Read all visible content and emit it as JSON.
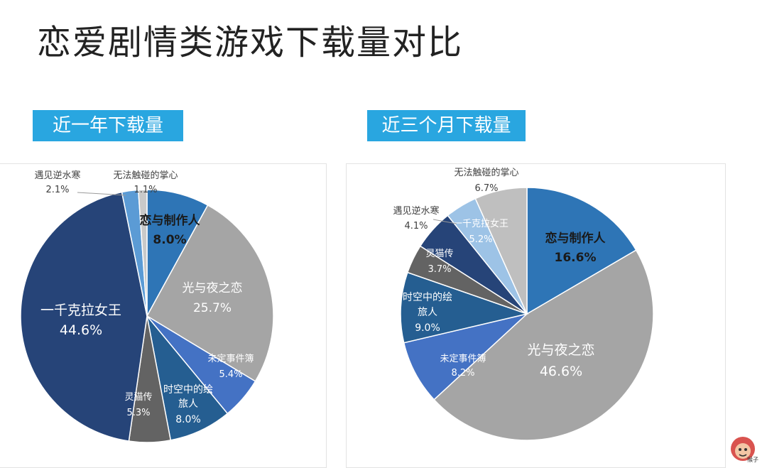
{
  "page": {
    "title": "恋爱剧情类游戏下载量对比",
    "watermark_text": "猴子"
  },
  "chart_data": [
    {
      "type": "pie",
      "title": "近一年下载量",
      "slices": [
        {
          "label": "恋与制作人",
          "value": 8.0,
          "pct": "8.0%",
          "color": "#2e75b6",
          "text_color": "#1a1a1a",
          "bold": true
        },
        {
          "label": "光与夜之恋",
          "value": 25.7,
          "pct": "25.7%",
          "color": "#a5a5a5",
          "text_color": "#ffffff"
        },
        {
          "label": "未定事件簿",
          "value": 5.4,
          "pct": "5.4%",
          "color": "#4472c4",
          "text_color": "#ffffff"
        },
        {
          "label": "时空中的绘旅人",
          "value": 8.0,
          "pct": "8.0%",
          "color": "#255e91",
          "text_color": "#ffffff"
        },
        {
          "label": "灵猫传",
          "value": 5.3,
          "pct": "5.3%",
          "color": "#636363",
          "text_color": "#ffffff"
        },
        {
          "label": "一千克拉女王",
          "value": 44.6,
          "pct": "44.6%",
          "color": "#264478",
          "text_color": "#ffffff"
        },
        {
          "label": "遇见逆水寒",
          "value": 2.1,
          "pct": "2.1%",
          "color": "#5b9bd5",
          "text_color": "#404040"
        },
        {
          "label": "无法触碰的掌心",
          "value": 1.1,
          "pct": "1.1%",
          "color": "#c9c9c9",
          "text_color": "#404040"
        }
      ]
    },
    {
      "type": "pie",
      "title": "近三个月下载量",
      "slices": [
        {
          "label": "恋与制作人",
          "value": 16.6,
          "pct": "16.6%",
          "color": "#2e75b6",
          "text_color": "#1a1a1a",
          "bold": true
        },
        {
          "label": "光与夜之恋",
          "value": 46.6,
          "pct": "46.6%",
          "color": "#a5a5a5",
          "text_color": "#ffffff"
        },
        {
          "label": "未定事件簿",
          "value": 8.2,
          "pct": "8.2%",
          "color": "#4472c4",
          "text_color": "#ffffff"
        },
        {
          "label": "时空中的绘旅人",
          "value": 9.0,
          "pct": "9.0%",
          "color": "#255e91",
          "text_color": "#ffffff"
        },
        {
          "label": "灵猫传",
          "value": 3.7,
          "pct": "3.7%",
          "color": "#636363",
          "text_color": "#ffffff"
        },
        {
          "label": "一千克拉女王",
          "value": 5.2,
          "pct": "5.2%",
          "color": "#264478",
          "text_color": "#ffffff"
        },
        {
          "label": "遇见逆水寒",
          "value": 4.1,
          "pct": "4.1%",
          "color": "#9dc3e6",
          "text_color": "#404040"
        },
        {
          "label": "无法触碰的掌心",
          "value": 6.7,
          "pct": "6.7%",
          "color": "#bfbfbf",
          "text_color": "#404040"
        }
      ]
    }
  ]
}
